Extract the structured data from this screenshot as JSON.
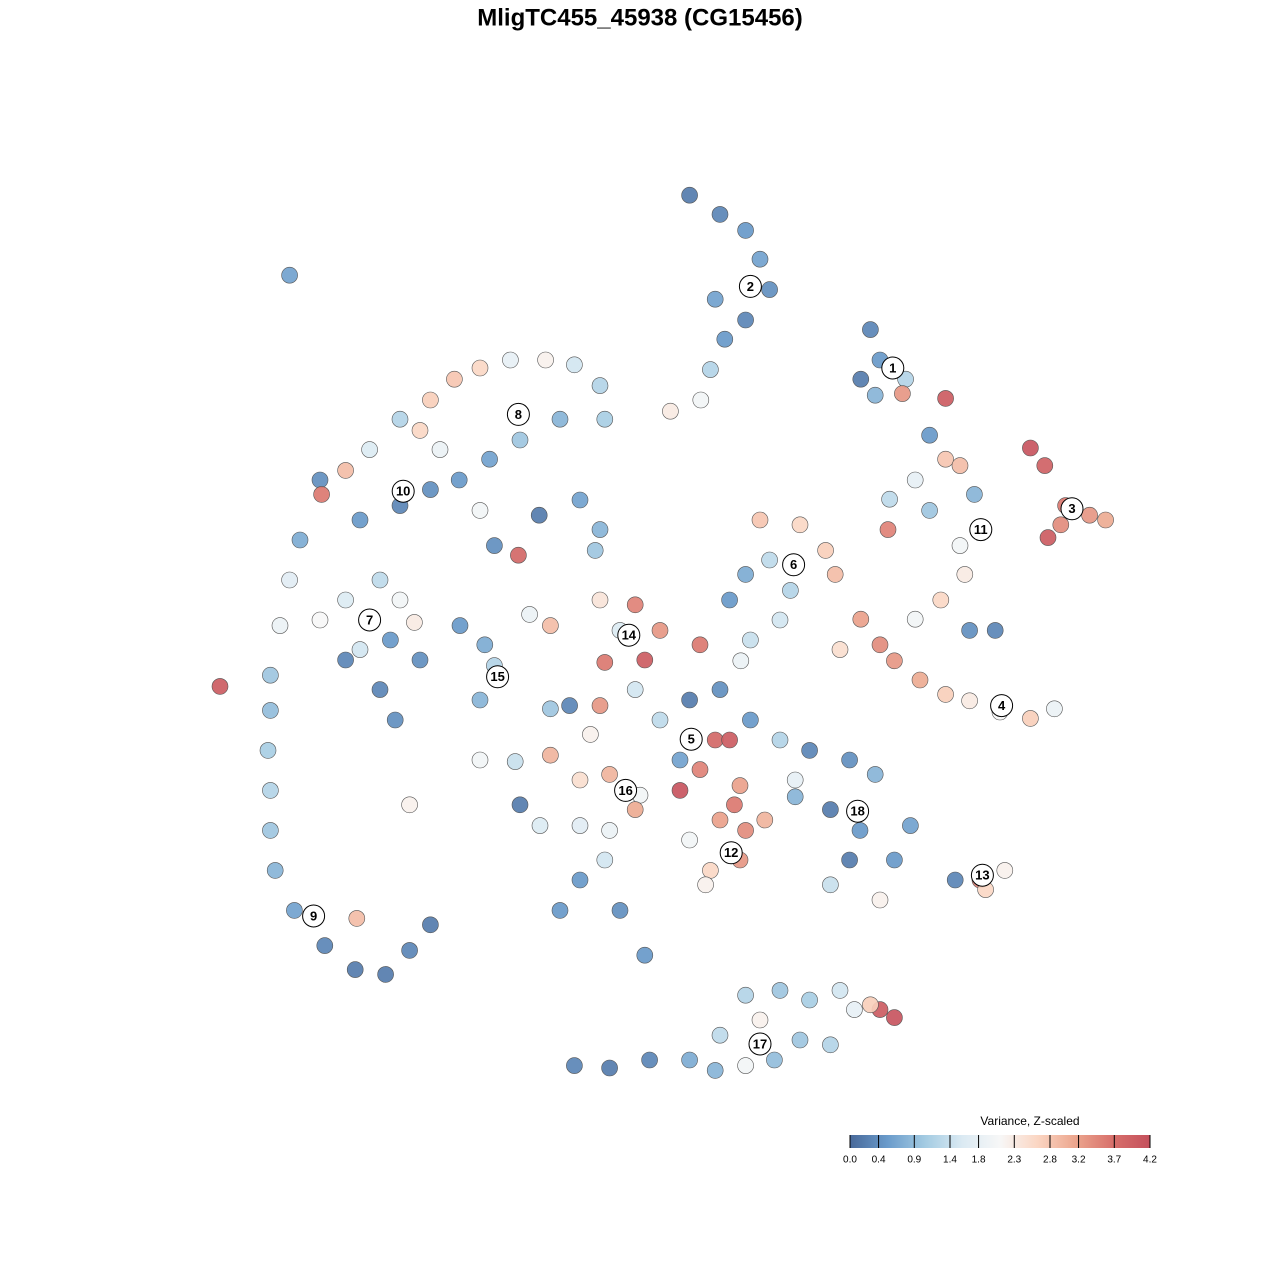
{
  "chart_data": {
    "type": "scatter",
    "title": "MligTC455_45938 (CG15456)",
    "xlim": [
      -40,
      40
    ],
    "ylim": [
      -40,
      40
    ],
    "x": [
      3.1,
      5,
      6.6,
      7.5,
      8.1,
      6.6,
      5.3,
      4.4,
      3.8,
      1.9,
      4.7,
      14.4,
      15,
      13.8,
      16.6,
      14.7,
      16.4,
      19.1,
      24.4,
      25.3,
      26.6,
      28.1,
      29.1,
      26.3,
      25.5,
      18.1,
      19.1,
      20,
      17.2,
      15.6,
      18.1,
      20.9,
      20,
      20.3,
      18.8,
      17.2,
      20.6,
      22.2,
      15.5,
      13.8,
      15,
      15.9,
      17.5,
      19.1,
      20.6,
      22.5,
      24.4,
      25.9,
      12.5,
      7.5,
      10,
      11.6,
      8.1,
      6.6,
      9.4,
      5.6,
      12.2,
      8.75,
      6.9,
      6.3,
      -20,
      -18.4,
      -16.9,
      -15,
      -13.1,
      -11.6,
      -10,
      -8.1,
      -5.9,
      -4.1,
      -2.5,
      -2.2,
      -5,
      -7.5,
      -9.4,
      -11.3,
      -13.1,
      -15,
      -17.5,
      -6.3,
      -3.75,
      -2.5,
      -2.8,
      -12.5,
      -13.75,
      -7.6,
      -9.1,
      -10,
      -19.9,
      -21.25,
      -21.9,
      -22.5,
      -20,
      -18.4,
      -16.25,
      -15,
      -17.5,
      -15.6,
      -14.1,
      -13.75,
      -16.25,
      -15.3,
      -18.4,
      -26.25,
      -23.1,
      -23.1,
      -23.25,
      -23.1,
      -23.1,
      -22.8,
      -21.6,
      -19.7,
      -17.8,
      -15.9,
      -14.4,
      -13.1,
      -17.7,
      -21.9,
      -14.4,
      -11.25,
      -9.7,
      -9.1,
      -10,
      -6.9,
      -5.6,
      -2.5,
      -0.3,
      -1.25,
      1.25,
      0.3,
      -2.2,
      3.75,
      3.1,
      5,
      1.25,
      -0.3,
      -2.5,
      -3.1,
      4.7,
      5.6,
      3.75,
      6.9,
      8.75,
      2.5,
      -4.4,
      -5.6,
      6.25,
      -10,
      -7.8,
      -5.6,
      -3.75,
      -1.9,
      0,
      -7.5,
      -6.25,
      -3.75,
      -0.3,
      2.5,
      -1.9,
      -2.2,
      -3.75,
      -5,
      -1.25,
      0.3,
      5,
      6.6,
      7.8,
      4.4,
      6.25,
      4.1,
      3.1,
      5.9,
      10.6,
      13.1,
      14.7,
      11.9,
      13.75,
      13.1,
      11.9,
      15,
      15.9,
      16.9,
      9.7,
      9.7,
      19.7,
      21.25,
      22.8,
      21.6,
      -4.1,
      -1.9,
      0.6,
      3.1,
      4.7,
      5,
      6.6,
      8.75,
      10.6,
      12.5,
      13.4,
      15,
      15.9,
      14.4,
      10,
      11.9,
      8.4,
      6.6,
      7.5
    ],
    "y": [
      27.8,
      26.6,
      25.6,
      23.8,
      21.9,
      20,
      18.8,
      16.9,
      15,
      14.3,
      21.3,
      19.4,
      17.5,
      16.3,
      16.3,
      15.3,
      15.4,
      15.1,
      12,
      10.9,
      8.4,
      7.8,
      7.5,
      7.2,
      6.4,
      12.8,
      11.3,
      10.9,
      10,
      8.8,
      8.1,
      9.1,
      5.9,
      4.1,
      2.5,
      1.3,
      0.6,
      0.6,
      6.9,
      1.3,
      -0.3,
      -1.3,
      -2.5,
      -3.4,
      -3.8,
      -4.5,
      -4.9,
      -4.3,
      -0.6,
      7.5,
      7.2,
      5.6,
      5,
      4.1,
      3.1,
      2.5,
      4.1,
      1.25,
      0,
      -1.3,
      10,
      10.6,
      11.9,
      13.8,
      15,
      16.3,
      17,
      17.5,
      17.5,
      17.2,
      15.9,
      13.8,
      13.8,
      12.5,
      11.3,
      10,
      9.4,
      8.4,
      7.5,
      7.8,
      8.75,
      6.9,
      5.6,
      11.9,
      13.1,
      5.3,
      5.9,
      8.1,
      9.1,
      6.25,
      3.75,
      0.9,
      1.25,
      2.5,
      3.75,
      2.5,
      -0.6,
      0,
      1.1,
      -1.25,
      -3.1,
      -5,
      -1.25,
      -2.9,
      -2.2,
      -4.4,
      -6.9,
      -9.4,
      -11.9,
      -14.4,
      -16.9,
      -19.1,
      -20.6,
      -20.9,
      -19.4,
      -17.8,
      -17.4,
      22.8,
      -10.3,
      0.9,
      -0.3,
      -1.6,
      -3.75,
      1.6,
      0.9,
      2.5,
      2.2,
      0.6,
      0.6,
      -1.25,
      -1.4,
      -0.3,
      -3.75,
      -3.1,
      -5,
      -3.1,
      -4.1,
      -5.9,
      -6.25,
      -6.25,
      -8.1,
      -5,
      -6.25,
      -7.5,
      -4.1,
      -4.3,
      -9.1,
      -7.5,
      -7.6,
      -7.2,
      -8.75,
      -8.4,
      -9.7,
      -10.3,
      -11.6,
      -11.6,
      -10.6,
      -9.4,
      -11.9,
      -13.75,
      -15,
      -16.9,
      -16.9,
      -19.7,
      -11.25,
      -11.9,
      -11.25,
      -14.4,
      -13.75,
      -15.3,
      -12.5,
      -10.3,
      -6.9,
      -7.5,
      -8.4,
      -10.6,
      -11.9,
      -13.75,
      -15.3,
      -16.25,
      -13.75,
      -11.6,
      -8.75,
      -9.8,
      -15,
      -15,
      -14.4,
      -15.6,
      -26.6,
      -26.75,
      -26.25,
      -26.25,
      -26.9,
      -24.7,
      -22.2,
      -21.9,
      -22.5,
      -21.9,
      -23.1,
      -23.1,
      -23.6,
      -22.8,
      -25,
      -25.3,
      -26.25,
      -26.6,
      -23.75
    ],
    "values": [
      0.2,
      0.3,
      0.5,
      0.6,
      0.4,
      0.3,
      0.5,
      1.2,
      2.0,
      2.3,
      0.6,
      0.3,
      0.5,
      0.2,
      1.2,
      0.8,
      3.3,
      4.0,
      4.1,
      3.9,
      3.6,
      3.3,
      3.1,
      3.4,
      4.0,
      0.5,
      2.8,
      2.9,
      1.8,
      1.3,
      1.0,
      0.8,
      2.0,
      2.3,
      2.6,
      2.0,
      0.4,
      0.3,
      3.5,
      3.2,
      3.4,
      3.3,
      3.1,
      2.7,
      2.3,
      2.1,
      2.7,
      1.9,
      2.5,
      2.8,
      2.6,
      2.7,
      1.3,
      0.7,
      1.2,
      0.5,
      2.9,
      1.5,
      1.4,
      1.9,
      0.4,
      2.9,
      1.6,
      1.2,
      2.7,
      2.8,
      2.6,
      1.8,
      2.2,
      1.5,
      1.2,
      1.1,
      0.8,
      1.0,
      0.6,
      0.5,
      0.4,
      0.3,
      0.5,
      0.2,
      0.6,
      0.8,
      1.0,
      1.9,
      2.6,
      3.8,
      0.4,
      2.0,
      3.6,
      0.7,
      1.7,
      1.9,
      2.1,
      1.6,
      1.3,
      2.0,
      1.5,
      0.5,
      2.3,
      0.4,
      0.3,
      0.4,
      0.3,
      4.0,
      1.0,
      0.9,
      1.1,
      1.2,
      1.0,
      0.8,
      0.6,
      0.3,
      0.2,
      0.2,
      0.3,
      0.2,
      2.9,
      0.6,
      2.2,
      0.5,
      0.7,
      1.2,
      0.8,
      1.9,
      2.9,
      2.4,
      3.5,
      1.6,
      3.3,
      4.0,
      3.6,
      3.6,
      0.2,
      0.4,
      1.3,
      1.5,
      3.3,
      2.2,
      3.8,
      4.0,
      3.5,
      0.5,
      1.2,
      0.6,
      0.3,
      1.0,
      3.2,
      2.0,
      1.4,
      3.0,
      2.5,
      3.0,
      2.0,
      0.2,
      1.6,
      1.7,
      3.1,
      4.1,
      1.9,
      1.5,
      0.5,
      0.5,
      0.4,
      0.5,
      3.2,
      3.4,
      3.0,
      2.6,
      3.3,
      2.2,
      2.0,
      3.6,
      0.3,
      0.4,
      0.8,
      0.2,
      0.5,
      0.2,
      1.4,
      2.2,
      0.5,
      0.6,
      1.8,
      0.8,
      0.3,
      3.5,
      2.2,
      2.6,
      0.3,
      0.2,
      0.3,
      0.7,
      0.8,
      1.3,
      1.2,
      1.0,
      1.1,
      1.5,
      1.8,
      4.0,
      4.1,
      2.7,
      1.0,
      1.2,
      0.9,
      2.0,
      2.2
    ],
    "clusters": [
      {
        "label": "1",
        "x": 15.8,
        "y": 17
      },
      {
        "label": "2",
        "x": 6.9,
        "y": 22.1
      },
      {
        "label": "3",
        "x": 27,
        "y": 8.2
      },
      {
        "label": "4",
        "x": 22.6,
        "y": -4.1
      },
      {
        "label": "5",
        "x": 3.2,
        "y": -6.2
      },
      {
        "label": "6",
        "x": 9.6,
        "y": 4.7
      },
      {
        "label": "7",
        "x": -16.9,
        "y": 1.25
      },
      {
        "label": "8",
        "x": -7.6,
        "y": 14.1
      },
      {
        "label": "9",
        "x": -20.4,
        "y": -17.25
      },
      {
        "label": "10",
        "x": -14.8,
        "y": 9.3
      },
      {
        "label": "11",
        "x": 21.3,
        "y": 6.9
      },
      {
        "label": "12",
        "x": 5.7,
        "y": -13.3
      },
      {
        "label": "13",
        "x": 21.4,
        "y": -14.7
      },
      {
        "label": "14",
        "x": -0.7,
        "y": 0.3
      },
      {
        "label": "15",
        "x": -8.9,
        "y": -2.3
      },
      {
        "label": "16",
        "x": -0.9,
        "y": -9.4
      },
      {
        "label": "17",
        "x": 7.5,
        "y": -25.25
      },
      {
        "label": "18",
        "x": 13.6,
        "y": -10.7
      }
    ],
    "colorbar_title": "Variance, Z-scaled",
    "clim": [
      0,
      4.2
    ],
    "colorbar_ticks": [
      {
        "value": 0,
        "label": "0.0"
      },
      0.4,
      0.9,
      1.4,
      1.8,
      2.3,
      2.8,
      3.2,
      3.7,
      4.2
    ],
    "colorscale": [
      "#48699a",
      "#6a9bcb",
      "#a3cbe2",
      "#dbeaf3",
      "#f7f7f7",
      "#fbd6c3",
      "#eca68e",
      "#d8706b",
      "#c44f5c"
    ]
  }
}
